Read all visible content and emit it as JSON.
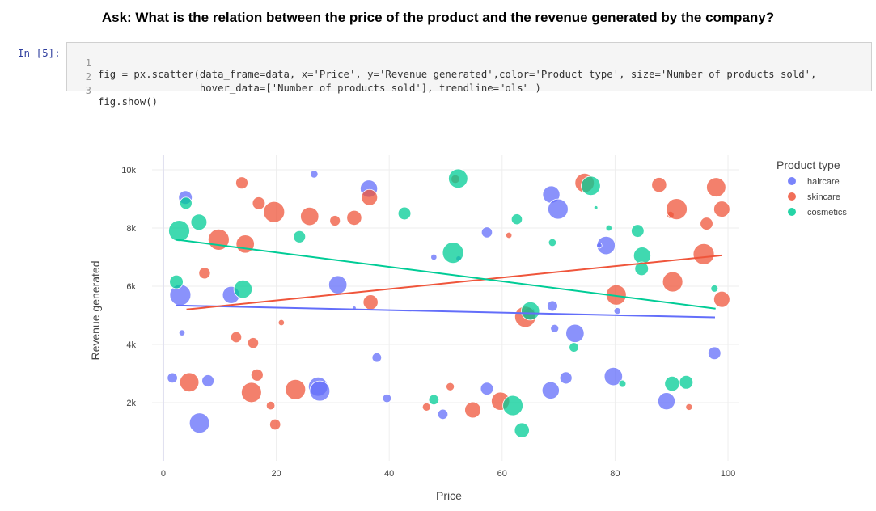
{
  "question": "Ask: What is the relation between the price of the product and the revenue generated by the company?",
  "cell": {
    "prompt": "In [5]:",
    "lines": [
      {
        "n": "1",
        "text": "fig = px.scatter(data_frame=data, x='Price', y='Revenue generated',color='Product type', size='Number of products sold',"
      },
      {
        "n": "2",
        "text": "                 hover_data=['Number of products sold'], trendline=\"ols\" )"
      },
      {
        "n": "3",
        "text": "fig.show()"
      }
    ]
  },
  "colors": {
    "haircare": "#636efa",
    "skincare": "#ef553b",
    "cosmetics": "#00cc96"
  },
  "chart_data": {
    "type": "scatter",
    "xlabel": "Price",
    "ylabel": "Revenue generated",
    "xlim": [
      -2,
      102
    ],
    "ylim": [
      0,
      10500
    ],
    "x_ticks": [
      0,
      20,
      40,
      60,
      80,
      100
    ],
    "x_tick_labels": [
      "0",
      "20",
      "40",
      "60",
      "80",
      "100"
    ],
    "y_ticks": [
      2000,
      4000,
      6000,
      8000,
      10000
    ],
    "y_tick_labels": [
      "2k",
      "4k",
      "6k",
      "8k",
      "10k"
    ],
    "grid": true,
    "legend": {
      "title": "Product type",
      "placement": "top-right"
    },
    "series": [
      {
        "name": "haircare",
        "points": [
          [
            26.7,
            9850,
            8
          ],
          [
            36.4,
            9350,
            40
          ],
          [
            3.9,
            9050,
            25
          ],
          [
            68.7,
            9150,
            40
          ],
          [
            69.9,
            8650,
            55
          ],
          [
            57.3,
            7850,
            16
          ],
          [
            78.4,
            7400,
            45
          ],
          [
            77.2,
            7400,
            4
          ],
          [
            47.9,
            7000,
            5
          ],
          [
            52.3,
            6950,
            4
          ],
          [
            30.9,
            6050,
            45
          ],
          [
            3.0,
            5700,
            60
          ],
          [
            12.0,
            5700,
            40
          ],
          [
            33.8,
            5250,
            2
          ],
          [
            68.9,
            5320,
            15
          ],
          [
            80.4,
            5150,
            6
          ],
          [
            64.9,
            5050,
            22
          ],
          [
            3.3,
            4400,
            5
          ],
          [
            69.3,
            4550,
            9
          ],
          [
            72.9,
            4380,
            45
          ],
          [
            37.8,
            3550,
            12
          ],
          [
            97.6,
            3700,
            22
          ],
          [
            1.6,
            2850,
            14
          ],
          [
            7.9,
            2750,
            20
          ],
          [
            27.4,
            2550,
            50
          ],
          [
            27.7,
            2400,
            55
          ],
          [
            39.6,
            2150,
            10
          ],
          [
            57.3,
            2480,
            22
          ],
          [
            68.6,
            2420,
            40
          ],
          [
            71.3,
            2850,
            20
          ],
          [
            79.7,
            2900,
            45
          ],
          [
            89.1,
            2050,
            40
          ],
          [
            49.5,
            1600,
            14
          ],
          [
            6.4,
            1300,
            55
          ]
        ]
      },
      {
        "name": "skincare",
        "points": [
          [
            13.9,
            9550,
            20
          ],
          [
            36.5,
            9050,
            35
          ],
          [
            51.7,
            9680,
            10
          ],
          [
            74.6,
            9550,
            50
          ],
          [
            87.8,
            9480,
            30
          ],
          [
            97.9,
            9400,
            50
          ],
          [
            16.9,
            8850,
            22
          ],
          [
            19.6,
            8550,
            60
          ],
          [
            25.9,
            8400,
            45
          ],
          [
            30.4,
            8250,
            15
          ],
          [
            33.8,
            8350,
            30
          ],
          [
            89.8,
            8450,
            7
          ],
          [
            90.9,
            8650,
            60
          ],
          [
            98.9,
            8650,
            35
          ],
          [
            96.2,
            8150,
            22
          ],
          [
            61.2,
            7750,
            5
          ],
          [
            9.8,
            7600,
            60
          ],
          [
            14.5,
            7450,
            45
          ],
          [
            95.7,
            7100,
            60
          ],
          [
            7.3,
            6450,
            18
          ],
          [
            90.2,
            6150,
            55
          ],
          [
            80.2,
            5700,
            55
          ],
          [
            36.7,
            5450,
            30
          ],
          [
            98.9,
            5550,
            35
          ],
          [
            20.9,
            4750,
            5
          ],
          [
            64.1,
            4950,
            60
          ],
          [
            12.9,
            4250,
            16
          ],
          [
            15.9,
            4050,
            16
          ],
          [
            16.6,
            2950,
            20
          ],
          [
            4.6,
            2700,
            50
          ],
          [
            15.6,
            2350,
            55
          ],
          [
            23.4,
            2450,
            55
          ],
          [
            19.0,
            1900,
            10
          ],
          [
            46.6,
            1850,
            9
          ],
          [
            50.8,
            2550,
            9
          ],
          [
            54.8,
            1750,
            35
          ],
          [
            59.7,
            2050,
            45
          ],
          [
            93.1,
            1850,
            6
          ],
          [
            19.8,
            1250,
            16
          ]
        ]
      },
      {
        "name": "cosmetics",
        "points": [
          [
            52.2,
            9700,
            50
          ],
          [
            75.7,
            9450,
            50
          ],
          [
            4.0,
            8850,
            20
          ],
          [
            62.6,
            8300,
            16
          ],
          [
            42.7,
            8500,
            22
          ],
          [
            6.3,
            8200,
            35
          ],
          [
            84.0,
            7900,
            22
          ],
          [
            76.6,
            8700,
            2
          ],
          [
            78.9,
            8000,
            5
          ],
          [
            2.8,
            7900,
            60
          ],
          [
            24.1,
            7700,
            20
          ],
          [
            68.9,
            7500,
            8
          ],
          [
            51.3,
            7150,
            60
          ],
          [
            84.8,
            7050,
            40
          ],
          [
            84.7,
            6600,
            25
          ],
          [
            2.3,
            6150,
            25
          ],
          [
            14.1,
            5900,
            45
          ],
          [
            97.6,
            5920,
            7
          ],
          [
            65.0,
            5150,
            45
          ],
          [
            72.7,
            3900,
            12
          ],
          [
            47.9,
            2100,
            14
          ],
          [
            81.3,
            2650,
            7
          ],
          [
            90.1,
            2650,
            30
          ],
          [
            92.6,
            2700,
            25
          ],
          [
            61.9,
            1900,
            55
          ],
          [
            63.5,
            1050,
            30
          ]
        ]
      }
    ],
    "trendlines": [
      {
        "name": "haircare",
        "x": [
          2.3,
          97.7
        ],
        "y": [
          5340,
          4930
        ]
      },
      {
        "name": "skincare",
        "x": [
          4.1,
          98.9
        ],
        "y": [
          5200,
          7060
        ]
      },
      {
        "name": "cosmetics",
        "x": [
          2.3,
          97.8
        ],
        "y": [
          7600,
          5230
        ]
      }
    ]
  }
}
